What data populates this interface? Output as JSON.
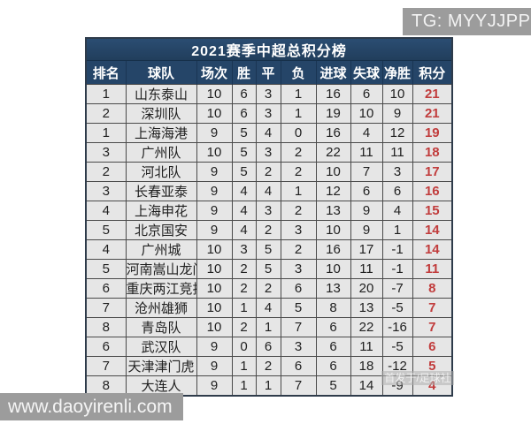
{
  "chart_data": {
    "type": "table",
    "title": "2021赛季中超总积分榜",
    "columns": [
      "排名",
      "球队",
      "场次",
      "胜",
      "平",
      "负",
      "进球",
      "失球",
      "净胜",
      "积分"
    ],
    "column_keys": [
      "rank",
      "team",
      "played",
      "win",
      "draw",
      "loss",
      "goals_for",
      "goals_against",
      "goal_diff",
      "points"
    ],
    "rows": [
      [
        "1",
        "山东泰山",
        "10",
        "6",
        "3",
        "1",
        "16",
        "6",
        "10",
        "21"
      ],
      [
        "2",
        "深圳队",
        "10",
        "6",
        "3",
        "1",
        "19",
        "10",
        "9",
        "21"
      ],
      [
        "1",
        "上海海港",
        "9",
        "5",
        "4",
        "0",
        "16",
        "4",
        "12",
        "19"
      ],
      [
        "3",
        "广州队",
        "10",
        "5",
        "3",
        "2",
        "22",
        "11",
        "11",
        "18"
      ],
      [
        "2",
        "河北队",
        "9",
        "5",
        "2",
        "2",
        "10",
        "7",
        "3",
        "17"
      ],
      [
        "3",
        "长春亚泰",
        "9",
        "4",
        "4",
        "1",
        "12",
        "6",
        "6",
        "16"
      ],
      [
        "4",
        "上海申花",
        "9",
        "4",
        "3",
        "2",
        "13",
        "9",
        "4",
        "15"
      ],
      [
        "5",
        "北京国安",
        "9",
        "4",
        "2",
        "3",
        "10",
        "9",
        "1",
        "14"
      ],
      [
        "4",
        "广州城",
        "10",
        "3",
        "5",
        "2",
        "16",
        "17",
        "-1",
        "14"
      ],
      [
        "5",
        "河南嵩山龙门",
        "10",
        "2",
        "5",
        "3",
        "10",
        "11",
        "-1",
        "11"
      ],
      [
        "6",
        "重庆两江竞技",
        "10",
        "2",
        "2",
        "6",
        "13",
        "20",
        "-7",
        "8"
      ],
      [
        "7",
        "沧州雄狮",
        "10",
        "1",
        "4",
        "5",
        "8",
        "13",
        "-5",
        "7"
      ],
      [
        "8",
        "青岛队",
        "10",
        "2",
        "1",
        "7",
        "6",
        "22",
        "-16",
        "7"
      ],
      [
        "6",
        "武汉队",
        "9",
        "0",
        "6",
        "3",
        "6",
        "11",
        "-5",
        "6"
      ],
      [
        "7",
        "天津津门虎",
        "9",
        "1",
        "2",
        "6",
        "6",
        "18",
        "-12",
        "5"
      ],
      [
        "8",
        "大连人",
        "9",
        "1",
        "1",
        "7",
        "5",
        "14",
        "-9",
        "4"
      ]
    ],
    "points_column_index": 9
  },
  "watermarks": {
    "top_right": "TG: MYYJJPP",
    "bottom_left": "www.daoyirenli.com",
    "faint_overlay": "首发于/足球社"
  },
  "colors": {
    "header_bg": "#254568",
    "row_bg": "#e6e6e6",
    "points_text": "#c13c3c",
    "cell_border": "#4a4a4a",
    "watermark_bg": "#9c9c9c",
    "page_bg": "#ffffff"
  }
}
